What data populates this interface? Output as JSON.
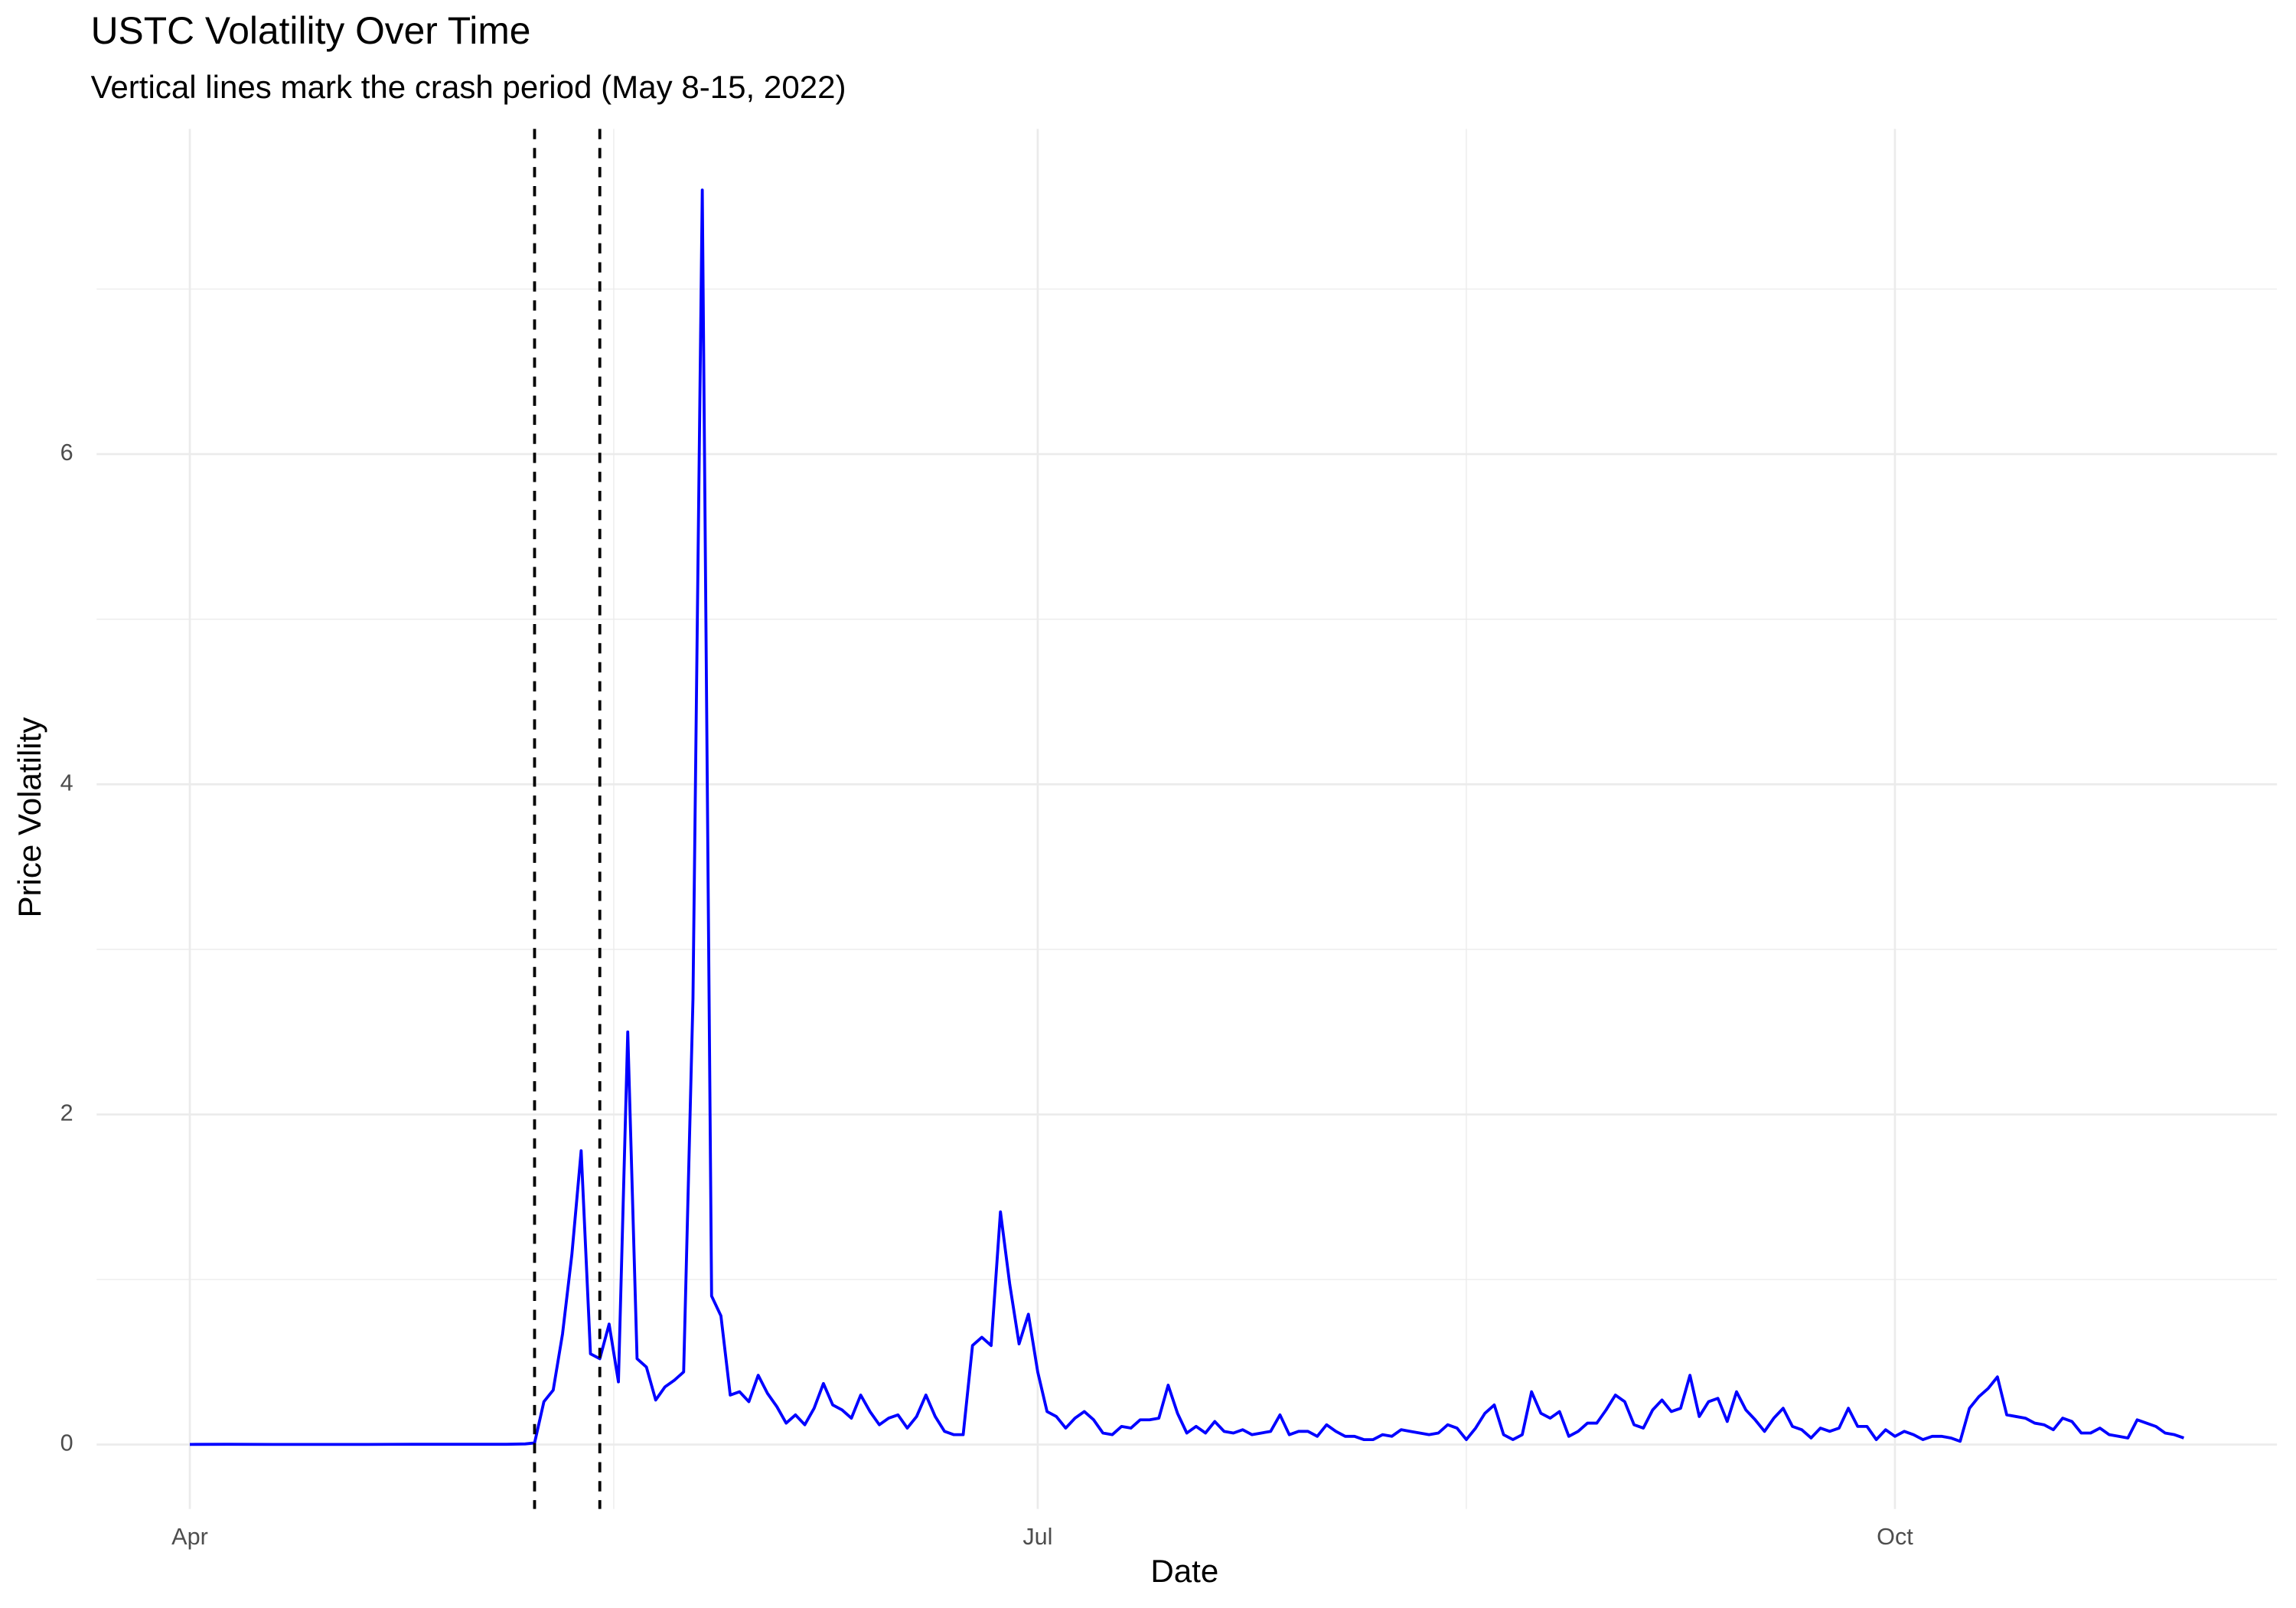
{
  "chart_data": {
    "type": "line",
    "title": "USTC Volatility Over Time",
    "subtitle": "Vertical lines mark the crash period (May 8-15, 2022)",
    "x_label": "Date",
    "y_label": "Price Volatility",
    "color": "#0000ff",
    "grid": true,
    "crash_lines": [
      128,
      135
    ],
    "xlim": [
      81,
      315
    ],
    "xticks": [
      {
        "value": 91,
        "label": "Apr"
      },
      {
        "value": 182,
        "label": "Jul"
      },
      {
        "value": 274,
        "label": "Oct"
      }
    ],
    "x_minor_ticks": [
      136.5,
      228
    ],
    "ylim": [
      -0.39,
      7.97
    ],
    "yticks": [
      0,
      2,
      4,
      6
    ],
    "y_minor_ticks": [
      1,
      3,
      5,
      7
    ],
    "x": [
      91,
      95,
      100,
      105,
      110,
      115,
      120,
      125,
      127,
      128,
      129,
      130,
      131,
      132,
      133,
      134,
      135,
      136,
      137,
      138,
      139,
      140,
      141,
      142,
      143,
      144,
      145,
      146,
      147,
      148,
      149,
      150,
      151,
      152,
      153,
      154,
      155,
      156,
      157,
      158,
      159,
      160,
      161,
      162,
      163,
      164,
      165,
      166,
      167,
      168,
      169,
      170,
      171,
      172,
      173,
      174,
      175,
      176,
      177,
      178,
      179,
      180,
      181,
      182,
      183,
      184,
      185,
      186,
      187,
      188,
      189,
      190,
      191,
      192,
      193,
      194,
      195,
      196,
      197,
      198,
      199,
      200,
      201,
      202,
      203,
      204,
      205,
      206,
      207,
      208,
      209,
      210,
      211,
      212,
      213,
      214,
      215,
      216,
      217,
      218,
      219,
      220,
      221,
      222,
      223,
      224,
      225,
      226,
      227,
      228,
      229,
      230,
      231,
      232,
      233,
      234,
      235,
      236,
      237,
      238,
      239,
      240,
      241,
      242,
      243,
      244,
      245,
      246,
      247,
      248,
      249,
      250,
      251,
      252,
      253,
      254,
      255,
      256,
      257,
      258,
      259,
      260,
      261,
      262,
      263,
      264,
      265,
      266,
      267,
      268,
      269,
      270,
      271,
      272,
      273,
      274,
      275,
      276,
      277,
      278,
      279,
      280,
      281,
      282,
      283,
      284,
      285,
      286,
      287,
      288,
      289,
      290,
      291,
      292,
      293,
      294,
      295,
      296,
      297,
      298,
      299,
      300,
      301,
      302,
      303,
      304,
      305
    ],
    "values": [
      0.001,
      0.002,
      0.001,
      0.001,
      0.001,
      0.002,
      0.002,
      0.002,
      0.004,
      0.01,
      0.26,
      0.33,
      0.67,
      1.15,
      1.78,
      0.55,
      0.52,
      0.73,
      0.38,
      2.5,
      0.52,
      0.47,
      0.27,
      0.35,
      0.39,
      0.44,
      2.7,
      7.6,
      0.9,
      0.78,
      0.3,
      0.32,
      0.26,
      0.42,
      0.31,
      0.23,
      0.13,
      0.18,
      0.12,
      0.22,
      0.37,
      0.24,
      0.21,
      0.16,
      0.3,
      0.2,
      0.12,
      0.16,
      0.18,
      0.1,
      0.17,
      0.3,
      0.17,
      0.08,
      0.06,
      0.06,
      0.6,
      0.65,
      0.6,
      1.41,
      0.97,
      0.61,
      0.79,
      0.44,
      0.2,
      0.17,
      0.1,
      0.16,
      0.2,
      0.15,
      0.07,
      0.06,
      0.11,
      0.1,
      0.15,
      0.15,
      0.16,
      0.36,
      0.19,
      0.07,
      0.11,
      0.07,
      0.14,
      0.08,
      0.07,
      0.09,
      0.06,
      0.07,
      0.08,
      0.18,
      0.06,
      0.08,
      0.08,
      0.05,
      0.12,
      0.08,
      0.05,
      0.05,
      0.03,
      0.03,
      0.06,
      0.05,
      0.09,
      0.08,
      0.07,
      0.06,
      0.07,
      0.12,
      0.1,
      0.03,
      0.1,
      0.19,
      0.24,
      0.06,
      0.03,
      0.06,
      0.32,
      0.19,
      0.16,
      0.2,
      0.05,
      0.08,
      0.13,
      0.13,
      0.21,
      0.3,
      0.26,
      0.12,
      0.1,
      0.21,
      0.27,
      0.2,
      0.22,
      0.42,
      0.17,
      0.26,
      0.28,
      0.14,
      0.32,
      0.21,
      0.15,
      0.08,
      0.16,
      0.22,
      0.11,
      0.09,
      0.04,
      0.1,
      0.08,
      0.1,
      0.22,
      0.11,
      0.11,
      0.03,
      0.09,
      0.05,
      0.08,
      0.06,
      0.03,
      0.05,
      0.05,
      0.04,
      0.02,
      0.22,
      0.29,
      0.34,
      0.41,
      0.18,
      0.17,
      0.16,
      0.13,
      0.12,
      0.09,
      0.16,
      0.14,
      0.07,
      0.07,
      0.1,
      0.06,
      0.05,
      0.04,
      0.15,
      0.13,
      0.11,
      0.07,
      0.06,
      0.04
    ]
  }
}
